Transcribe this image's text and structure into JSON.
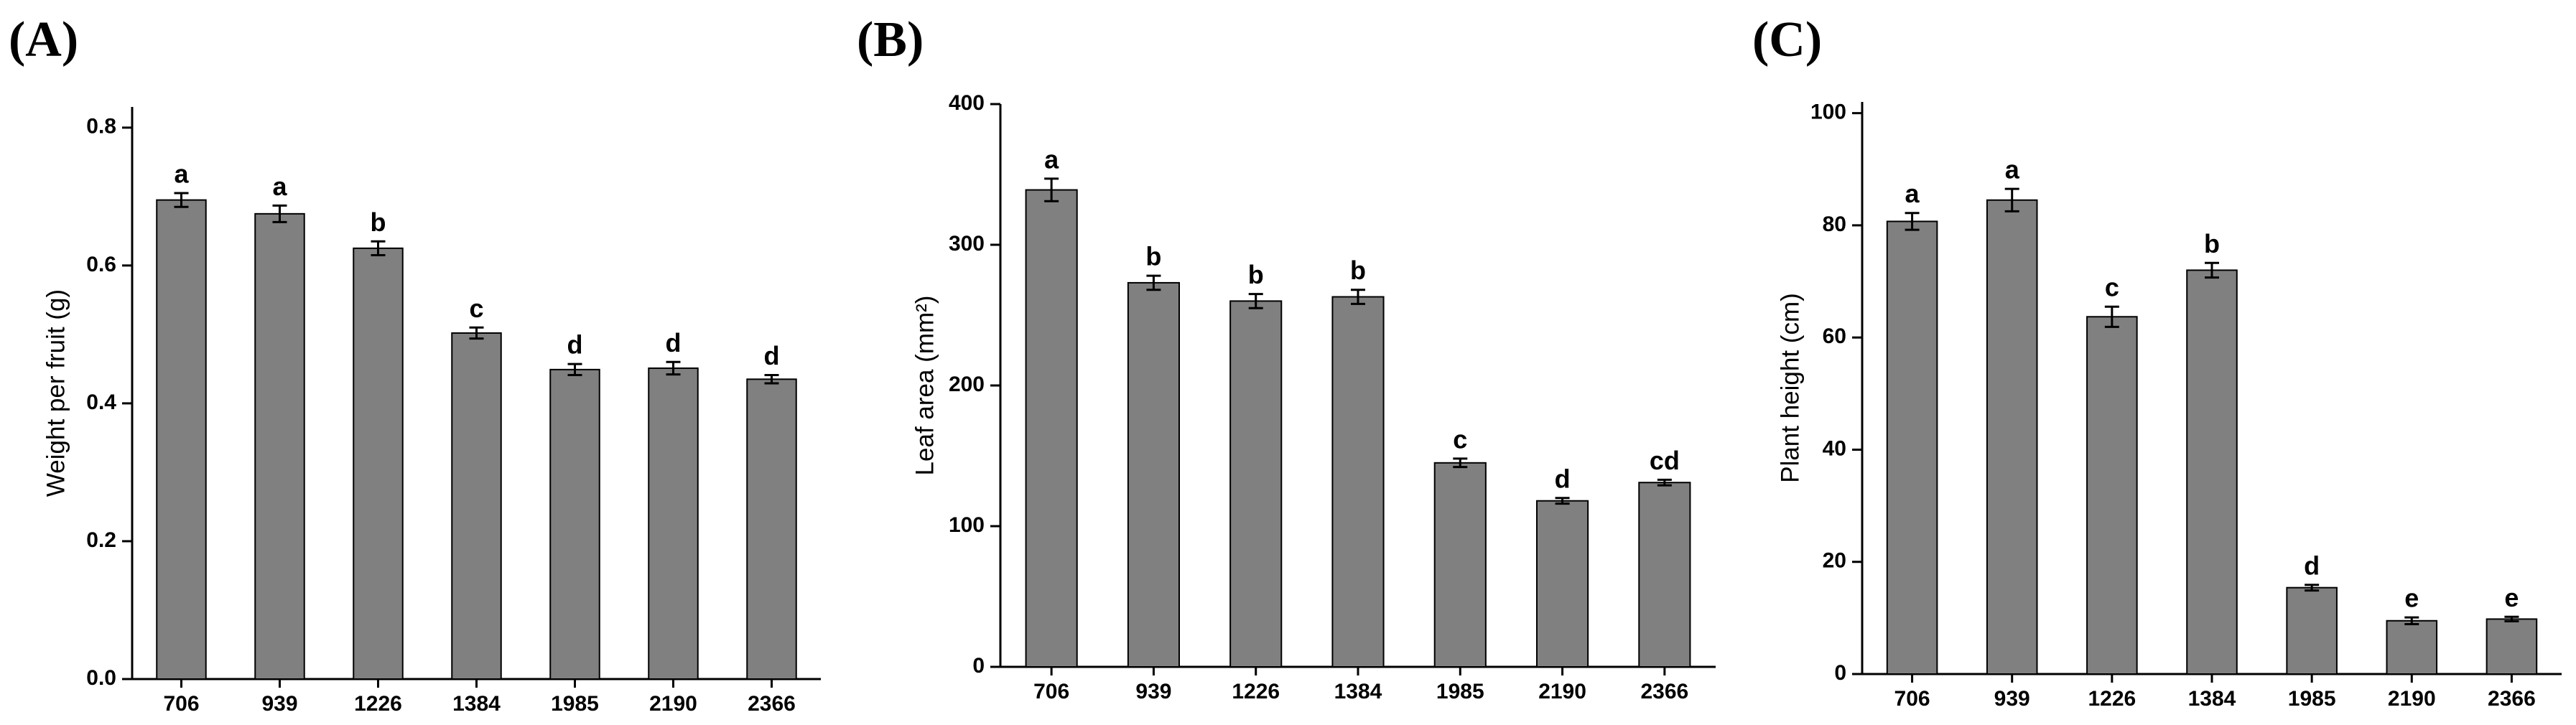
{
  "chart_data": [
    {
      "type": "bar",
      "panel_label": "(A)",
      "y_label": "Weight per fruit (g)",
      "categories": [
        "706",
        "939",
        "1226",
        "1384",
        "1985",
        "2190",
        "2366"
      ],
      "values": [
        0.695,
        0.675,
        0.625,
        0.502,
        0.449,
        0.451,
        0.435
      ],
      "errors": [
        0.01,
        0.012,
        0.01,
        0.008,
        0.008,
        0.009,
        0.006
      ],
      "labels": [
        "a",
        "a",
        "b",
        "c",
        "d",
        "d",
        "d"
      ],
      "color": "#808080",
      "ylim": [
        0,
        0.83
      ],
      "yticks": [
        {
          "value": 0,
          "label": "0.0"
        },
        0.2,
        0.4,
        0.6,
        0.8
      ]
    },
    {
      "type": "bar",
      "panel_label": "(B)",
      "y_label": "Leaf area (mm²)",
      "categories": [
        "706",
        "939",
        "1226",
        "1384",
        "1985",
        "2190",
        "2366"
      ],
      "values": [
        339,
        273,
        260,
        263,
        145,
        118,
        131
      ],
      "errors": [
        8,
        5,
        5,
        5,
        3,
        2,
        2
      ],
      "labels": [
        "a",
        "b",
        "b",
        "b",
        "c",
        "d",
        "cd"
      ],
      "color": "#808080",
      "ylim": [
        0,
        400
      ],
      "yticks": [
        0,
        100,
        200,
        300,
        400
      ]
    },
    {
      "type": "bar",
      "panel_label": "(C)",
      "y_label": "Plant height (cm)",
      "categories": [
        "706",
        "939",
        "1226",
        "1384",
        "1985",
        "2190",
        "2366"
      ],
      "values": [
        80.7,
        84.5,
        63.7,
        72,
        15.4,
        9.5,
        9.8
      ],
      "errors": [
        1.5,
        2,
        1.8,
        1.3,
        0.5,
        0.6,
        0.4
      ],
      "labels": [
        "a",
        "a",
        "c",
        "b",
        "d",
        "e",
        "e"
      ],
      "color": "#808080",
      "ylim": [
        0,
        102
      ],
      "yticks": [
        0,
        20,
        40,
        60,
        80,
        100
      ]
    }
  ]
}
